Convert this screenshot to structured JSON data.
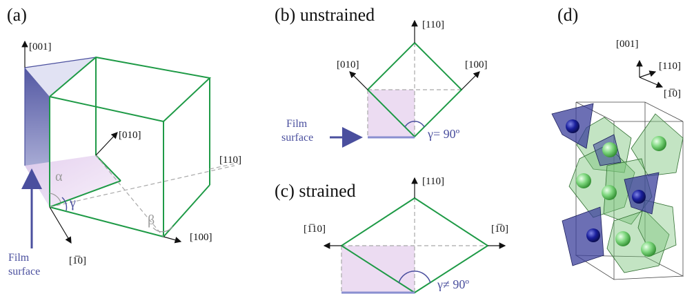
{
  "panel_a": {
    "tag": "(a)",
    "axis_001": "[001]",
    "axis_010": "[010]",
    "axis_110": "[110]",
    "axis_100": "[100]",
    "axis_1m10": "[1̅0]",
    "angle_alpha": "α",
    "angle_beta": "β",
    "angle_gamma": "γ",
    "film_line1": "Film",
    "film_line2": "surface"
  },
  "panel_b": {
    "tag": "(b) unstrained",
    "axis_110": "[110]",
    "axis_010": "[010]",
    "axis_100": "[100]",
    "film_line1": "Film",
    "film_line2": "surface",
    "gamma": "γ= 90º"
  },
  "panel_c": {
    "tag": "(c) strained",
    "axis_110": "[110]",
    "axis_m110": "[1̅10]",
    "axis_1m10": "[1̅0]",
    "gamma": "γ≠ 90º"
  },
  "panel_d": {
    "tag": "(d)",
    "axis_001": "[001]",
    "axis_110": "[110]",
    "axis_1m10": "[1̅0]"
  },
  "colors": {
    "cube_edge": "#1e9a46",
    "film_blue": "#4a4f9e",
    "shaded_pink": "#e8d6ef",
    "octahedron_green": "#7bc47b",
    "tetra_blue": "#3b3f9b"
  }
}
